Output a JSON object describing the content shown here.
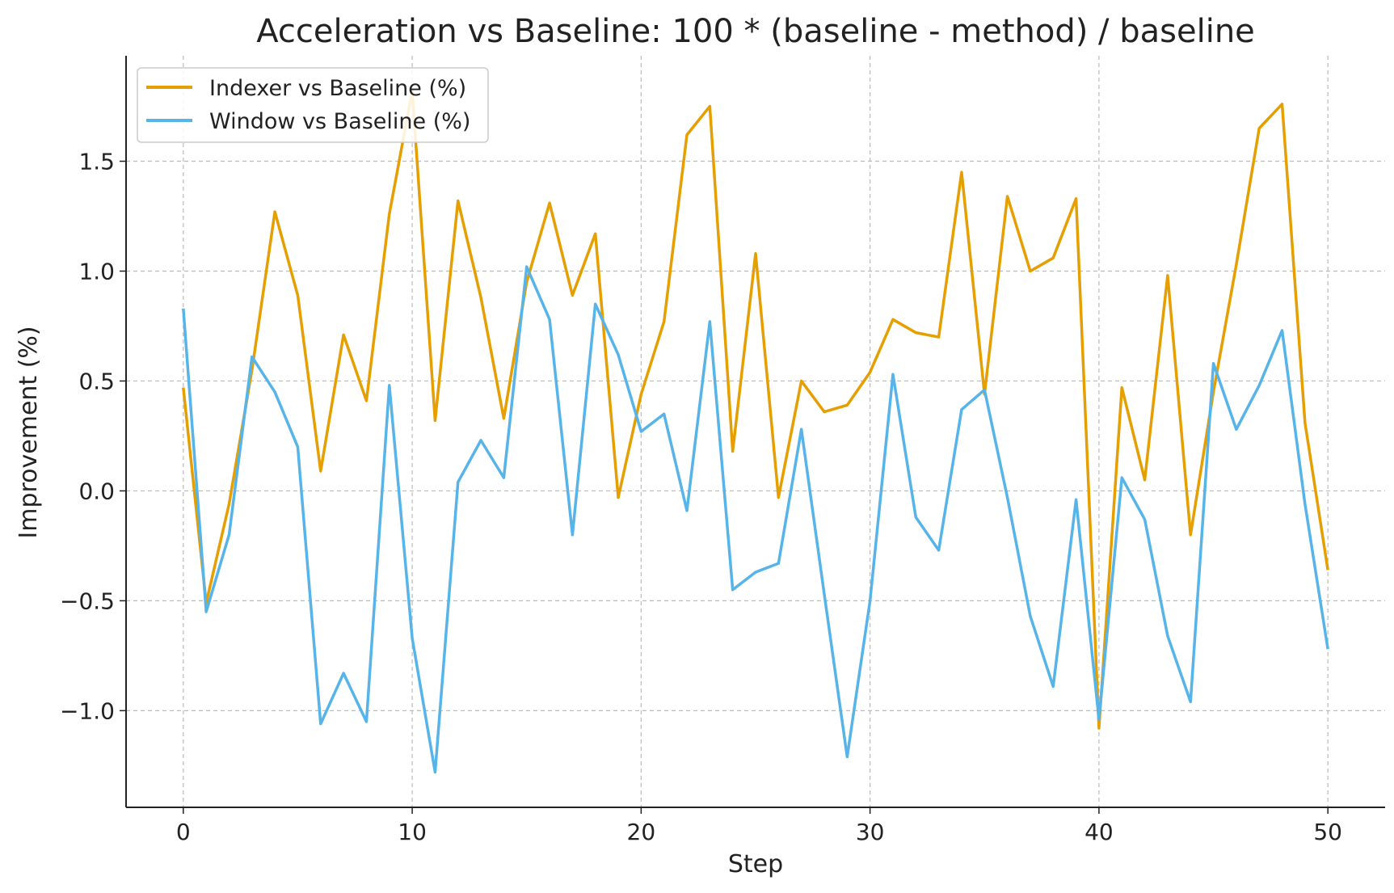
{
  "chart_data": {
    "type": "line",
    "title": "Acceleration vs Baseline: 100 * (baseline - method) / baseline",
    "xlabel": "Step",
    "ylabel": "Improvement (%)",
    "xlim": [
      -2.5,
      52.5
    ],
    "ylim": [
      -1.44,
      1.98
    ],
    "xticks": [
      0,
      10,
      20,
      30,
      40,
      50
    ],
    "yticks": [
      -1.0,
      -0.5,
      0.0,
      0.5,
      1.0,
      1.5
    ],
    "ytick_labels": [
      "−1.0",
      "−0.5",
      "0.0",
      "0.5",
      "1.0",
      "1.5"
    ],
    "grid": true,
    "legend_position": "top-left",
    "x": [
      0,
      1,
      2,
      3,
      4,
      5,
      6,
      7,
      8,
      9,
      10,
      11,
      12,
      13,
      14,
      15,
      16,
      17,
      18,
      19,
      20,
      21,
      22,
      23,
      24,
      25,
      26,
      27,
      28,
      29,
      30,
      31,
      32,
      33,
      34,
      35,
      36,
      37,
      38,
      39,
      40,
      41,
      42,
      43,
      44,
      45,
      46,
      47,
      48,
      49,
      50
    ],
    "series": [
      {
        "name": "Indexer vs Baseline (%)",
        "color": "#E69F00",
        "values": [
          0.47,
          -0.51,
          -0.06,
          0.55,
          1.27,
          0.89,
          0.09,
          0.71,
          0.41,
          1.26,
          1.82,
          0.32,
          1.32,
          0.88,
          0.33,
          0.95,
          1.31,
          0.89,
          1.17,
          -0.03,
          0.44,
          0.77,
          1.62,
          1.75,
          0.18,
          1.08,
          -0.03,
          0.5,
          0.36,
          0.39,
          0.54,
          0.78,
          0.72,
          0.7,
          1.45,
          0.44,
          1.34,
          1.0,
          1.06,
          1.33,
          -1.08,
          0.47,
          0.05,
          0.98,
          -0.2,
          0.45,
          1.03,
          1.65,
          1.76,
          0.31,
          -0.36
        ]
      },
      {
        "name": "Window vs Baseline (%)",
        "color": "#56B4E9",
        "values": [
          0.83,
          -0.55,
          -0.2,
          0.61,
          0.45,
          0.2,
          -1.06,
          -0.83,
          -1.05,
          0.48,
          -0.67,
          -1.28,
          0.04,
          0.23,
          0.06,
          1.02,
          0.78,
          -0.2,
          0.85,
          0.62,
          0.27,
          0.35,
          -0.09,
          0.77,
          -0.45,
          -0.37,
          -0.33,
          0.28,
          -0.47,
          -1.21,
          -0.5,
          0.53,
          -0.12,
          -0.27,
          0.37,
          0.46,
          -0.03,
          -0.57,
          -0.89,
          -0.04,
          -1.04,
          0.06,
          -0.13,
          -0.66,
          -0.96,
          0.58,
          0.28,
          0.48,
          0.73,
          -0.06,
          -0.72
        ]
      }
    ]
  }
}
